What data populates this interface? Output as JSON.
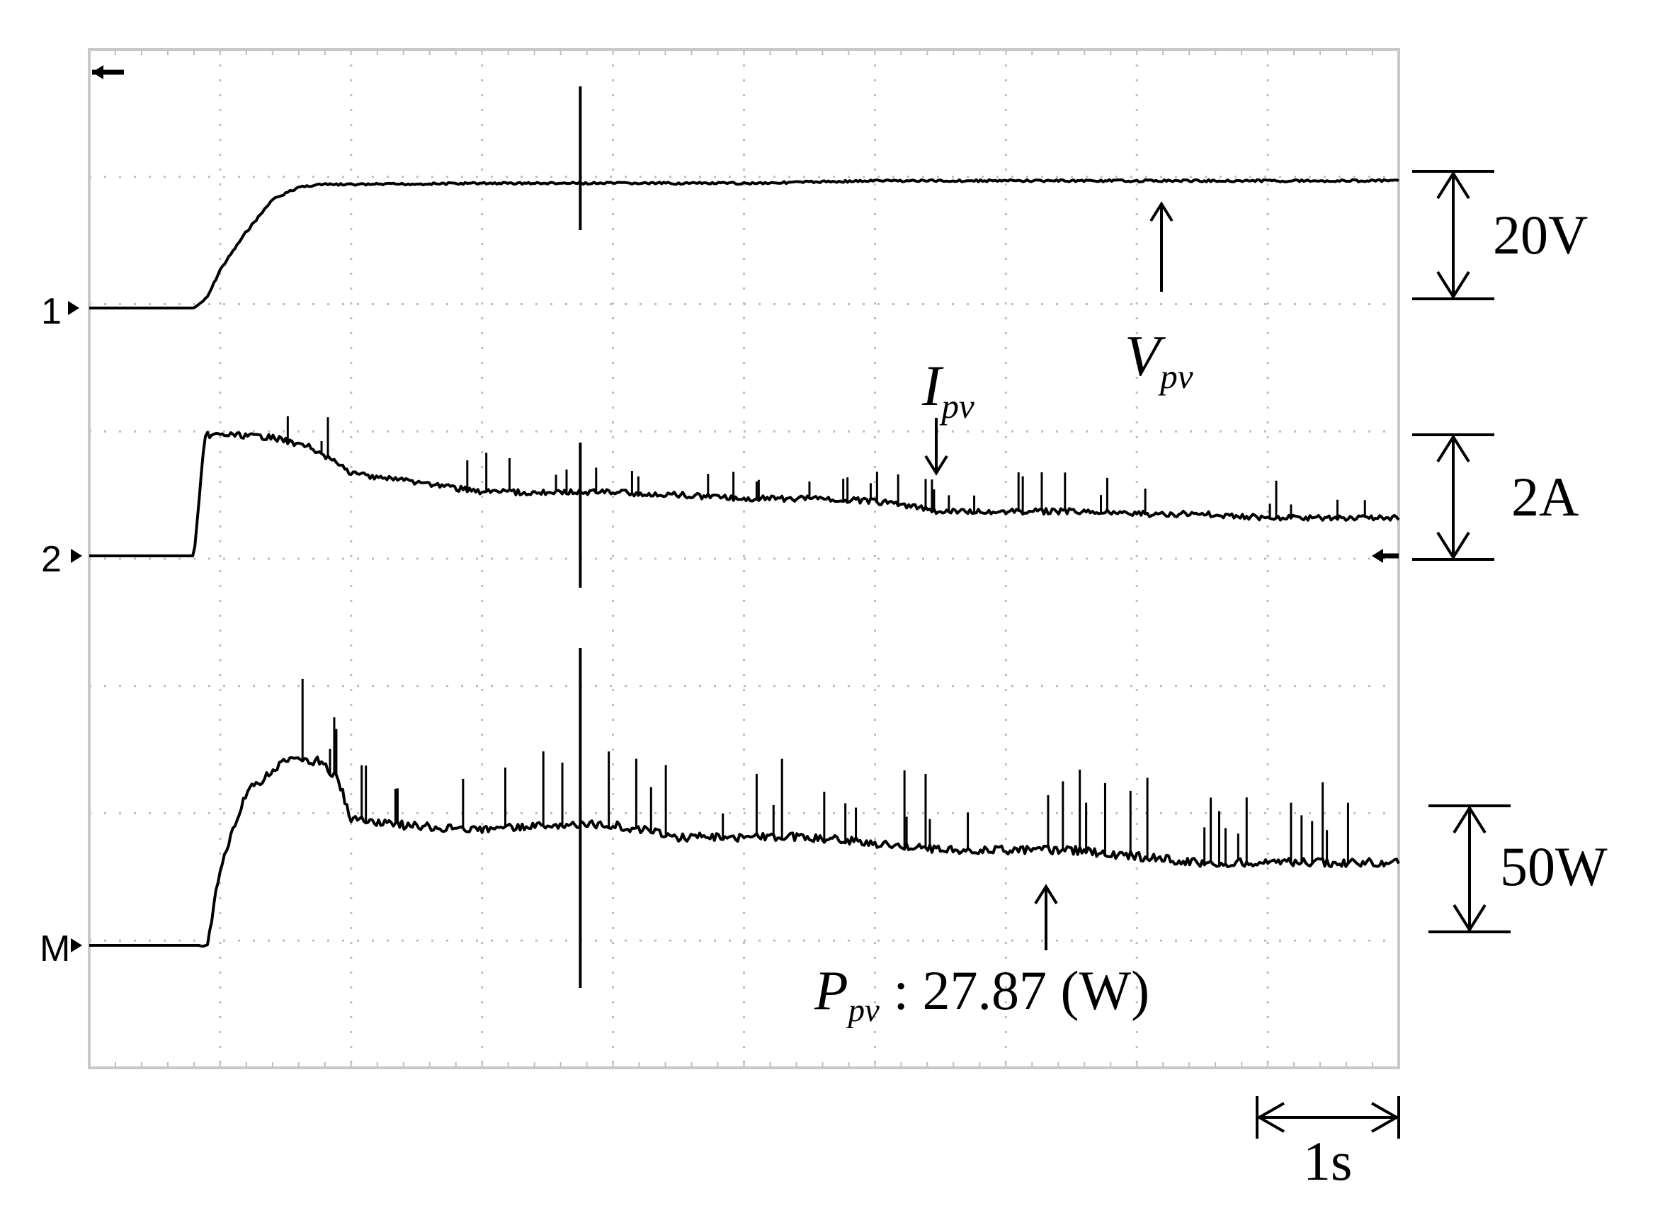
{
  "chart_data": {
    "type": "line",
    "title": "",
    "grid": true,
    "time_scale_label": "1s",
    "time_divisions": 10,
    "x_unit": "s",
    "x_range": [
      0,
      10
    ],
    "series": [
      {
        "name": "V",
        "subscript": "pv",
        "marker": "1",
        "scale_label": "20V",
        "units_per_div": 20,
        "unit": "V",
        "color": "#000000",
        "x": [
          0.0,
          0.8,
          0.9,
          1.0,
          1.2,
          1.4,
          1.6,
          1.75,
          2.0,
          3.0,
          4.0,
          5.0,
          6.0,
          7.0,
          8.0,
          9.0,
          10.0
        ],
        "y": [
          0.0,
          0.0,
          0.08,
          0.3,
          0.6,
          0.85,
          0.95,
          0.97,
          0.97,
          0.98,
          0.98,
          0.98,
          1.0,
          1.0,
          1.0,
          1.0,
          1.0
        ]
      },
      {
        "name": "I",
        "subscript": "pv",
        "marker": "2",
        "scale_label": "2A",
        "units_per_div": 2,
        "unit": "A",
        "color": "#000000",
        "x": [
          0.0,
          0.8,
          0.88,
          0.9,
          1.1,
          1.4,
          1.7,
          2.0,
          2.5,
          3.0,
          3.5,
          4.0,
          4.5,
          5.0,
          5.5,
          6.0,
          6.5,
          7.0,
          7.5,
          8.0,
          8.5,
          9.0,
          9.5,
          10.0
        ],
        "y": [
          0.0,
          0.0,
          0.9,
          0.95,
          0.95,
          0.93,
          0.85,
          0.65,
          0.58,
          0.5,
          0.5,
          0.5,
          0.48,
          0.45,
          0.45,
          0.43,
          0.35,
          0.35,
          0.35,
          0.33,
          0.33,
          0.3,
          0.3,
          0.3
        ]
      },
      {
        "name": "P",
        "subscript": "pv",
        "marker": "M",
        "scale_label": "50W",
        "units_per_div": 50,
        "unit": "W",
        "color": "#000000",
        "x": [
          0.0,
          0.9,
          1.0,
          1.2,
          1.5,
          1.75,
          1.9,
          2.0,
          2.3,
          3.0,
          3.5,
          4.0,
          4.5,
          5.0,
          5.5,
          6.0,
          6.5,
          7.0,
          7.5,
          8.0,
          8.5,
          9.0,
          9.5,
          10.0
        ],
        "y": [
          0.0,
          0.0,
          0.6,
          1.2,
          1.45,
          1.45,
          1.3,
          1.0,
          0.95,
          0.9,
          0.95,
          0.95,
          0.85,
          0.85,
          0.85,
          0.8,
          0.75,
          0.75,
          0.75,
          0.7,
          0.65,
          0.65,
          0.65,
          0.65
        ]
      }
    ],
    "annotations": {
      "power_readout": ": 27.87 (W)"
    }
  }
}
